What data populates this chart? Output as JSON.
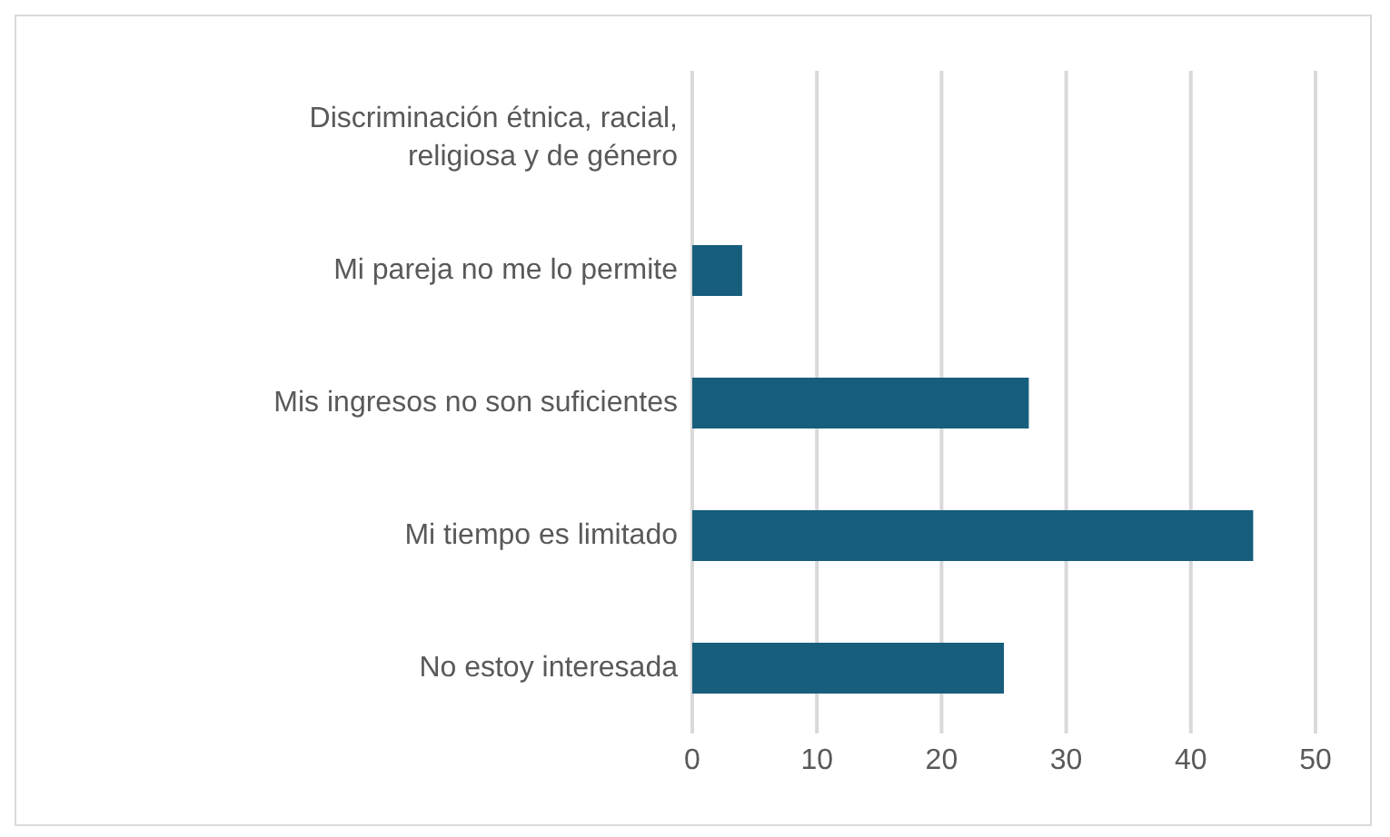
{
  "chart_data": {
    "type": "bar",
    "orientation": "horizontal",
    "categories": [
      "Discriminación étnica, racial, religiosa y de género",
      "Mi pareja no me lo permite",
      "Mis ingresos no son suficientes",
      "Mi tiempo es limitado",
      "No estoy interesada"
    ],
    "values": [
      0,
      4,
      27,
      45,
      25
    ],
    "color": "#175e7d",
    "xlim": [
      0,
      50
    ],
    "xticks": [
      0,
      10,
      20,
      30,
      40,
      50
    ],
    "grid": "x"
  }
}
